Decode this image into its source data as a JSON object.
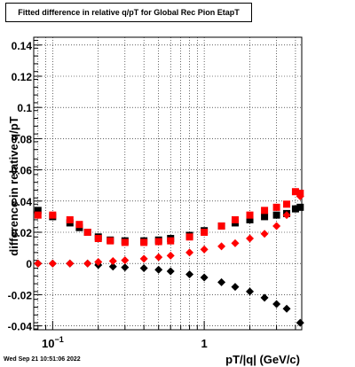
{
  "chart_data": {
    "type": "scatter",
    "title": "Fitted difference in relative q/pT for Global Rec Pion EtapT",
    "xlabel": "pT/|q| (GeV/c)",
    "ylabel": "difference in relative q/pT",
    "xscale": "log",
    "xlim": [
      0.075,
      4.4
    ],
    "ylim": [
      -0.0425,
      0.145
    ],
    "grid": true,
    "x_tick_labels": [
      "10^-1",
      "1"
    ],
    "y_tick_labels": [
      "-0.04",
      "-0.02",
      "0",
      "0.02",
      "0.04",
      "0.06",
      "0.08",
      "0.1",
      "0.12",
      "0.14"
    ],
    "colors": {
      "series_black": "#000000",
      "series_red": "#ff0000"
    },
    "series": [
      {
        "marker": "square",
        "color": "#000000",
        "x": [
          0.08,
          0.1,
          0.13,
          0.15,
          0.17,
          0.2,
          0.24,
          0.3,
          0.4,
          0.5,
          0.6,
          0.8,
          1.0,
          1.3,
          1.6,
          2.0,
          2.5,
          3.0,
          3.5,
          4.0,
          4.3
        ],
        "y": [
          0.034,
          0.03,
          0.026,
          0.023,
          0.02,
          0.017,
          0.015,
          0.0145,
          0.0145,
          0.015,
          0.016,
          0.018,
          0.021,
          0.024,
          0.026,
          0.028,
          0.03,
          0.031,
          0.032,
          0.035,
          0.036
        ]
      },
      {
        "marker": "square",
        "color": "#ff0000",
        "x": [
          0.08,
          0.1,
          0.13,
          0.15,
          0.17,
          0.2,
          0.24,
          0.3,
          0.4,
          0.5,
          0.6,
          0.8,
          1.0,
          1.3,
          1.6,
          2.0,
          2.5,
          3.0,
          3.5,
          4.0,
          4.3
        ],
        "y": [
          0.031,
          0.031,
          0.028,
          0.025,
          0.02,
          0.016,
          0.0145,
          0.0135,
          0.0135,
          0.014,
          0.0145,
          0.017,
          0.02,
          0.024,
          0.028,
          0.031,
          0.034,
          0.036,
          0.038,
          0.046,
          0.045
        ]
      },
      {
        "marker": "diamond",
        "color": "#000000",
        "x": [
          0.08,
          0.1,
          0.13,
          0.17,
          0.2,
          0.25,
          0.3,
          0.4,
          0.5,
          0.6,
          0.8,
          1.0,
          1.3,
          1.6,
          2.0,
          2.5,
          3.0,
          3.5,
          4.3
        ],
        "y": [
          0.0,
          0.0,
          0.0,
          0.0,
          -0.001,
          -0.002,
          -0.0025,
          -0.003,
          -0.004,
          -0.005,
          -0.007,
          -0.009,
          -0.012,
          -0.015,
          -0.018,
          -0.022,
          -0.026,
          -0.029,
          -0.038
        ]
      },
      {
        "marker": "diamond",
        "color": "#ff0000",
        "x": [
          0.08,
          0.1,
          0.13,
          0.17,
          0.2,
          0.25,
          0.3,
          0.4,
          0.5,
          0.6,
          0.8,
          1.0,
          1.3,
          1.6,
          2.0,
          2.5,
          3.0,
          3.5,
          4.3
        ],
        "y": [
          0.0,
          0.0,
          0.0,
          0.0,
          0.001,
          0.0015,
          0.002,
          0.003,
          0.004,
          0.005,
          0.007,
          0.009,
          0.011,
          0.013,
          0.016,
          0.019,
          0.024,
          0.031,
          0.043
        ]
      }
    ]
  },
  "footer": {
    "date": "Wed Sep 21 10:51:06 2022"
  }
}
